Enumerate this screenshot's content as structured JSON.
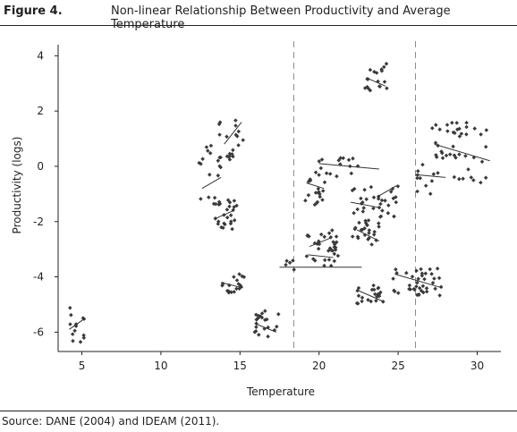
{
  "figure": {
    "label": "Figure 4.",
    "title": "Non-linear Relationship Between Productivity and Average Temperature",
    "source": "Source: DANE (2004) and IDEAM (2011)."
  },
  "chart_data": {
    "type": "scatter",
    "title": "Non-linear Relationship Between Productivity and Average Temperature",
    "xlabel": "Temperature",
    "ylabel": "Productivity (logs)",
    "xlim": [
      3.5,
      31.5
    ],
    "ylim": [
      -6.7,
      4.4
    ],
    "xticks": [
      5,
      10,
      15,
      20,
      25,
      30
    ],
    "yticks": [
      -6,
      -4,
      -2,
      0,
      2,
      4
    ],
    "grid": false,
    "vertical_reference_lines": [
      18.4,
      26.1
    ],
    "colors": {
      "points": "#3a3a3a",
      "fit_lines": "#333333",
      "reference_lines": "#888888",
      "axes": "#231f20"
    },
    "clusters": [
      {
        "xmin": 4.2,
        "xmax": 5.2,
        "ymin": -6.4,
        "ymax": -5.1,
        "n": 14,
        "fit": [
          [
            4.2,
            -5.9
          ],
          [
            5.2,
            -5.5
          ]
        ]
      },
      {
        "xmin": 12.4,
        "xmax": 13.8,
        "ymin": -1.4,
        "ymax": 0.8,
        "n": 18,
        "fit": [
          [
            12.6,
            -0.8
          ],
          [
            13.8,
            -0.4
          ]
        ]
      },
      {
        "xmin": 13.4,
        "xmax": 14.8,
        "ymin": -2.3,
        "ymax": -1.2,
        "n": 24,
        "fit": [
          [
            13.4,
            -1.9
          ],
          [
            14.6,
            -1.6
          ]
        ]
      },
      {
        "xmin": 13.6,
        "xmax": 15.2,
        "ymin": 0.2,
        "ymax": 1.85,
        "n": 22,
        "fit": [
          [
            14.0,
            0.8
          ],
          [
            15.1,
            1.6
          ]
        ]
      },
      {
        "xmin": 13.8,
        "xmax": 15.3,
        "ymin": -4.6,
        "ymax": -3.9,
        "n": 18,
        "fit": [
          [
            13.8,
            -4.2
          ],
          [
            15.2,
            -4.4
          ]
        ]
      },
      {
        "xmin": 15.9,
        "xmax": 17.5,
        "ymin": -6.2,
        "ymax": -5.2,
        "n": 22,
        "fit": [
          [
            16.0,
            -5.7
          ],
          [
            17.3,
            -6.0
          ]
        ]
      },
      {
        "xmin": 17.6,
        "xmax": 18.8,
        "ymin": -3.8,
        "ymax": -3.4,
        "n": 5,
        "fit": [
          [
            17.5,
            -3.65
          ],
          [
            22.7,
            -3.65
          ]
        ]
      },
      {
        "xmin": 19.2,
        "xmax": 21.2,
        "ymin": -3.6,
        "ymax": -2.3,
        "n": 24,
        "fit": [
          [
            19.3,
            -3.2
          ],
          [
            20.9,
            -3.3
          ]
        ]
      },
      {
        "xmin": 19.1,
        "xmax": 21.0,
        "ymin": -3.0,
        "ymax": -2.5,
        "n": 10,
        "fit": [
          [
            19.4,
            -2.9
          ],
          [
            20.7,
            -2.6
          ]
        ]
      },
      {
        "xmin": 19.1,
        "xmax": 20.4,
        "ymin": -1.4,
        "ymax": -0.2,
        "n": 18,
        "fit": [
          [
            19.2,
            -0.6
          ],
          [
            20.3,
            -0.8
          ]
        ]
      },
      {
        "xmin": 20.0,
        "xmax": 22.7,
        "ymin": -0.6,
        "ymax": 0.55,
        "n": 16,
        "fit": [
          [
            20.0,
            0.1
          ],
          [
            23.8,
            -0.1
          ]
        ]
      },
      {
        "xmin": 22.1,
        "xmax": 24.1,
        "ymin": -2.2,
        "ymax": -0.6,
        "n": 22,
        "fit": [
          [
            22.0,
            -1.3
          ],
          [
            23.9,
            -1.5
          ]
        ]
      },
      {
        "xmin": 22.0,
        "xmax": 24.0,
        "ymin": -3.0,
        "ymax": -2.0,
        "n": 22,
        "fit": [
          [
            22.4,
            -2.3
          ],
          [
            23.8,
            -2.7
          ]
        ]
      },
      {
        "xmin": 22.3,
        "xmax": 24.1,
        "ymin": -5.0,
        "ymax": -4.3,
        "n": 22,
        "fit": [
          [
            22.5,
            -4.5
          ],
          [
            24.1,
            -4.9
          ]
        ]
      },
      {
        "xmin": 23.8,
        "xmax": 25.0,
        "ymin": -1.9,
        "ymax": -0.6,
        "n": 14,
        "fit": [
          [
            23.7,
            -1.1
          ],
          [
            24.9,
            -0.7
          ]
        ]
      },
      {
        "xmin": 22.8,
        "xmax": 24.3,
        "ymin": 2.7,
        "ymax": 3.75,
        "n": 18,
        "fit": [
          [
            23.0,
            3.2
          ],
          [
            24.2,
            2.9
          ]
        ]
      },
      {
        "xmin": 24.6,
        "xmax": 27.8,
        "ymin": -4.7,
        "ymax": -3.7,
        "n": 40,
        "fit": [
          [
            24.8,
            -3.9
          ],
          [
            27.8,
            -4.4
          ]
        ]
      },
      {
        "xmin": 26.2,
        "xmax": 27.4,
        "ymin": -1.2,
        "ymax": 0.1,
        "n": 10,
        "fit": [
          [
            26.1,
            -0.3
          ],
          [
            28.0,
            -0.4
          ]
        ]
      },
      {
        "xmin": 27.0,
        "xmax": 30.9,
        "ymin": -0.6,
        "ymax": 1.6,
        "n": 45,
        "fit": [
          [
            27.3,
            0.8
          ],
          [
            30.8,
            0.2
          ]
        ]
      }
    ]
  }
}
